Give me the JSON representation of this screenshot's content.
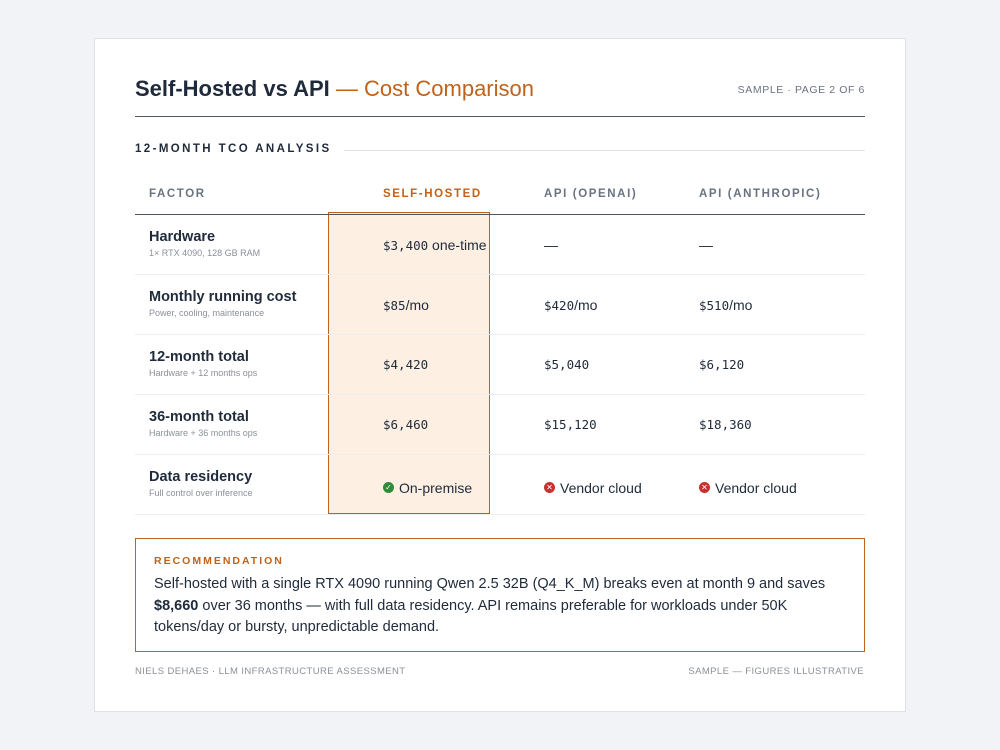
{
  "header": {
    "title_main": "Self-Hosted vs API",
    "title_sep": " — ",
    "title_sub": "Cost Comparison",
    "page_label": "SAMPLE · PAGE 2 OF 6"
  },
  "section": {
    "title": "12-MONTH TCO ANALYSIS"
  },
  "table": {
    "columns": [
      "FACTOR",
      "SELF-HOSTED",
      "API (OPENAI)",
      "API (ANTHROPIC)"
    ],
    "rows": [
      {
        "factor": "Hardware",
        "note": "1× RTX 4090, 128 GB RAM",
        "self_value": "$3,400",
        "self_suffix": " one-time",
        "openai": "—",
        "anthropic": "—"
      },
      {
        "factor": "Monthly running cost",
        "note": "Power, cooling, maintenance",
        "self_value": "$85",
        "self_suffix": "/mo",
        "openai_value": "$420",
        "openai_suffix": "/mo",
        "anthropic_value": "$510",
        "anthropic_suffix": "/mo"
      },
      {
        "factor": "12-month total",
        "note": "Hardware + 12 months ops",
        "self_value": "$4,420",
        "openai": "$5,040",
        "anthropic": "$6,120"
      },
      {
        "factor": "36-month total",
        "note": "Hardware + 36 months ops",
        "self_value": "$6,460",
        "openai": "$15,120",
        "anthropic": "$18,360"
      },
      {
        "factor": "Data residency",
        "note": "Full control over inference",
        "self_status": "On-premise",
        "openai_status": "Vendor cloud",
        "anthropic_status": "Vendor cloud"
      }
    ]
  },
  "recommendation": {
    "label": "RECOMMENDATION",
    "text_1": "Self-hosted with a single RTX 4090 running Qwen 2.5 32B (Q4_K_M) breaks even at month 9 and saves ",
    "text_bold": "$8,660",
    "text_2": " over 36 months — with full data residency. API remains preferable for workloads under 50K tokens/day or bursty, unpredictable demand."
  },
  "footer": {
    "left": "NIELS DEHAES · LLM INFRASTRUCTURE ASSESSMENT",
    "right": "SAMPLE — FIGURES ILLUSTRATIVE"
  },
  "colors": {
    "accent": "#c0621a",
    "highlight_bg": "#fdf0e2",
    "ok": "#2e8b3a",
    "bad": "#c93030"
  },
  "icons": {
    "ok": "check-circle-icon",
    "bad": "x-circle-icon"
  }
}
